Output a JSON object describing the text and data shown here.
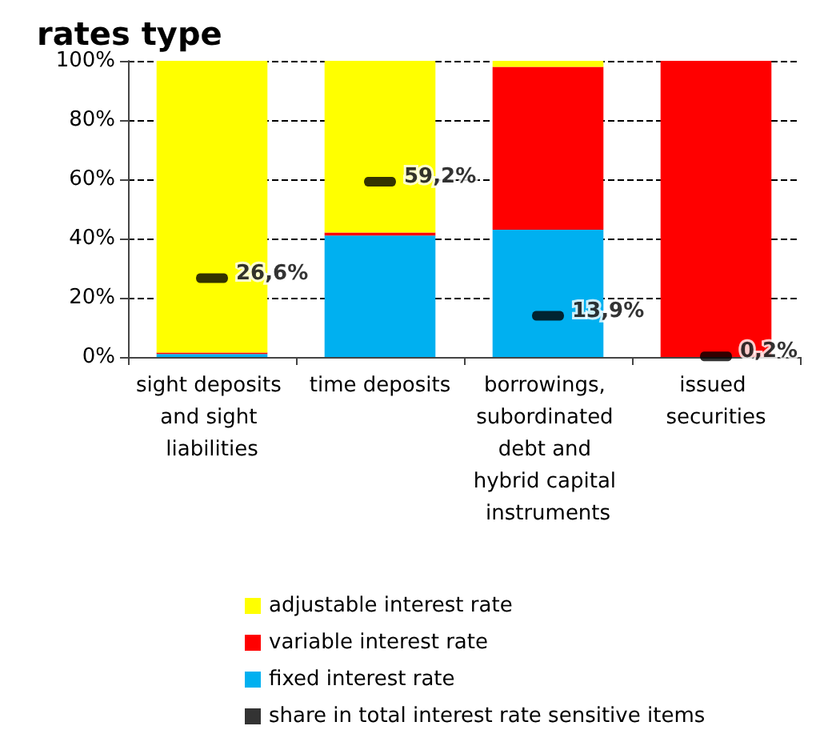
{
  "chart_data": {
    "type": "bar",
    "title": "rates type",
    "stacked": true,
    "categories": [
      "sight deposits and sight liabilities",
      "time deposits",
      "borrowings, subordinated debt and hybrid capital instruments",
      "issued securities"
    ],
    "series": [
      {
        "name": "fixed interest rate",
        "color": "#00b0f0",
        "values": [
          1,
          41,
          43,
          0
        ]
      },
      {
        "name": "variable interest rate",
        "color": "#ff0000",
        "values": [
          0.5,
          1,
          55,
          100
        ]
      },
      {
        "name": "adjustable interest rate",
        "color": "#ffff00",
        "values": [
          98.5,
          58,
          2,
          0
        ]
      },
      {
        "name": "share in total interest rate sensitive items",
        "type": "scatter",
        "color": "#000000",
        "x": [
          "sight deposits and sight liabilities",
          "time deposits",
          "borrowings, subordinated debt and hybrid capital instruments",
          "issued securities"
        ],
        "values": [
          26.6,
          59.2,
          13.9,
          0.2
        ],
        "value_labels": [
          "26,6%",
          "59,2%",
          "13,9%",
          "0,2%"
        ]
      }
    ],
    "ylim": [
      0,
      100
    ],
    "yticks": [
      {
        "value": 0,
        "label": "0%"
      },
      {
        "value": 20,
        "label": "20%"
      },
      {
        "value": 40,
        "label": "40%"
      },
      {
        "value": 60,
        "label": "60%"
      },
      {
        "value": 80,
        "label": "80%"
      },
      {
        "value": 100,
        "label": "100%"
      }
    ],
    "grid": "y",
    "legend": "bottom"
  }
}
